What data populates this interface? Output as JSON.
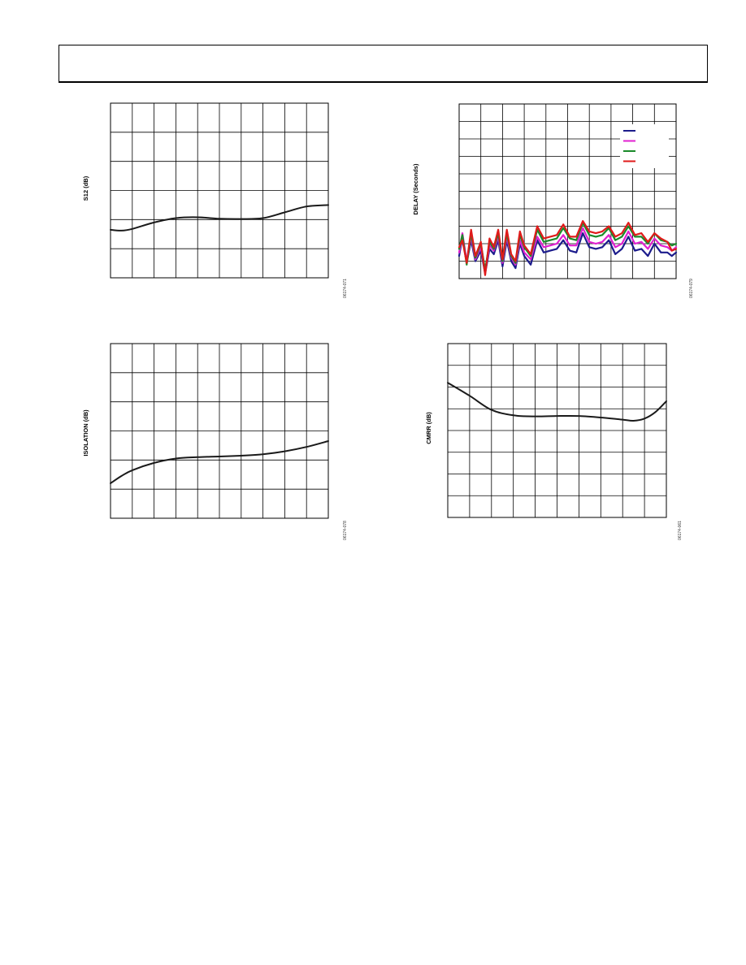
{
  "header": {
    "title": ""
  },
  "chart_data": [
    {
      "id": "s12",
      "type": "line",
      "title": "",
      "xlabel": "",
      "ylabel": "S12 (dB)",
      "figure_id": "06174-071",
      "grid": true,
      "grid_cols": 10,
      "grid_rows": 6,
      "ylim": [
        0,
        6
      ],
      "xlim": [
        0,
        10
      ],
      "series": [
        {
          "color": "#1a1a1a",
          "x": [
            0,
            0.5,
            1,
            2,
            3,
            4,
            5,
            6,
            7,
            8,
            9,
            10
          ],
          "y": [
            1.65,
            1.62,
            1.68,
            1.9,
            2.05,
            2.08,
            2.03,
            2.02,
            2.05,
            2.25,
            2.45,
            2.5
          ]
        }
      ]
    },
    {
      "id": "delay",
      "type": "line",
      "title": "",
      "xlabel": "",
      "ylabel": "DELAY (Seconds)",
      "figure_id": "06174-079",
      "grid": true,
      "grid_cols": 10,
      "grid_rows": 10,
      "ylim": [
        0,
        10
      ],
      "xlim": [
        0,
        10
      ],
      "legend_location": "top-right",
      "series": [
        {
          "color": "#1c1c8c",
          "x": [
            0,
            0.15,
            0.35,
            0.55,
            0.75,
            1.0,
            1.2,
            1.4,
            1.6,
            1.8,
            2.0,
            2.2,
            2.4,
            2.6,
            2.8,
            3.0,
            3.3,
            3.6,
            3.9,
            4.2,
            4.5,
            4.8,
            5.1,
            5.4,
            5.7,
            6.0,
            6.3,
            6.6,
            6.9,
            7.2,
            7.5,
            7.8,
            8.1,
            8.4,
            8.7,
            9.0,
            9.3,
            9.6,
            9.8,
            10.0
          ],
          "y": [
            1.3,
            2.4,
            0.9,
            2.2,
            1.0,
            1.6,
            0.3,
            1.7,
            1.4,
            2.2,
            0.7,
            2.2,
            1.0,
            0.6,
            2.0,
            1.3,
            0.8,
            2.2,
            1.5,
            1.6,
            1.7,
            2.2,
            1.6,
            1.5,
            2.6,
            1.8,
            1.7,
            1.8,
            2.2,
            1.4,
            1.7,
            2.4,
            1.6,
            1.7,
            1.3,
            2.0,
            1.5,
            1.5,
            1.3,
            1.5
          ]
        },
        {
          "color": "#e020d0",
          "x": [
            0,
            0.15,
            0.35,
            0.55,
            0.75,
            1.0,
            1.2,
            1.4,
            1.6,
            1.8,
            2.0,
            2.2,
            2.4,
            2.6,
            2.8,
            3.0,
            3.3,
            3.6,
            3.9,
            4.2,
            4.5,
            4.8,
            5.1,
            5.4,
            5.7,
            6.0,
            6.3,
            6.6,
            6.9,
            7.2,
            7.5,
            7.8,
            8.1,
            8.4,
            8.7,
            9.0,
            9.3,
            9.6,
            9.8,
            10.0
          ],
          "y": [
            1.5,
            2.6,
            1.0,
            2.4,
            1.1,
            1.8,
            0.4,
            1.9,
            1.6,
            2.4,
            0.9,
            2.4,
            1.2,
            0.8,
            2.2,
            1.5,
            1.1,
            2.4,
            1.8,
            1.9,
            2.0,
            2.5,
            1.9,
            1.9,
            2.9,
            2.1,
            2.0,
            2.1,
            2.5,
            1.8,
            2.0,
            2.7,
            2.0,
            2.1,
            1.7,
            2.3,
            1.9,
            1.8,
            1.6,
            1.8
          ]
        },
        {
          "color": "#1a8a2a",
          "x": [
            0,
            0.15,
            0.35,
            0.55,
            0.75,
            1.0,
            1.2,
            1.4,
            1.6,
            1.8,
            2.0,
            2.2,
            2.4,
            2.6,
            2.8,
            3.0,
            3.3,
            3.6,
            3.9,
            4.2,
            4.5,
            4.8,
            5.1,
            5.4,
            5.7,
            6.0,
            6.3,
            6.6,
            6.9,
            7.2,
            7.5,
            7.8,
            8.1,
            8.4,
            8.7,
            9.0,
            9.3,
            9.6,
            9.8,
            10.0
          ],
          "y": [
            1.7,
            2.5,
            0.8,
            2.6,
            1.2,
            2.0,
            0.5,
            2.1,
            1.7,
            2.6,
            1.0,
            2.6,
            1.3,
            0.9,
            2.5,
            1.8,
            1.3,
            2.8,
            2.1,
            2.2,
            2.3,
            2.9,
            2.3,
            2.2,
            3.2,
            2.5,
            2.4,
            2.5,
            2.9,
            2.2,
            2.4,
            3.0,
            2.4,
            2.4,
            2.0,
            2.6,
            2.2,
            2.1,
            1.9,
            2.0
          ]
        },
        {
          "color": "#e01a1a",
          "x": [
            0,
            0.15,
            0.35,
            0.55,
            0.75,
            1.0,
            1.2,
            1.4,
            1.6,
            1.8,
            2.0,
            2.2,
            2.4,
            2.6,
            2.8,
            3.0,
            3.3,
            3.6,
            3.9,
            4.2,
            4.5,
            4.8,
            5.1,
            5.4,
            5.7,
            6.0,
            6.3,
            6.6,
            6.9,
            7.2,
            7.5,
            7.8,
            8.1,
            8.4,
            8.7,
            9.0,
            9.3,
            9.6,
            9.8,
            10.0
          ],
          "y": [
            1.8,
            2.2,
            0.9,
            2.8,
            1.3,
            2.1,
            0.2,
            2.3,
            1.8,
            2.8,
            1.1,
            2.8,
            1.4,
            1.0,
            2.7,
            1.9,
            1.4,
            3.0,
            2.3,
            2.4,
            2.5,
            3.1,
            2.4,
            2.4,
            3.3,
            2.7,
            2.6,
            2.7,
            3.0,
            2.4,
            2.6,
            3.2,
            2.5,
            2.6,
            2.1,
            2.6,
            2.3,
            2.1,
            1.6,
            1.7
          ]
        }
      ]
    },
    {
      "id": "isolation",
      "type": "line",
      "title": "",
      "xlabel": "",
      "ylabel": "ISOLATION (dB)",
      "figure_id": "06174-078",
      "grid": true,
      "grid_cols": 10,
      "grid_rows": 6,
      "ylim": [
        0,
        6
      ],
      "xlim": [
        0,
        10
      ],
      "series": [
        {
          "color": "#1a1a1a",
          "x": [
            0,
            0.5,
            1,
            2,
            3,
            4,
            5,
            6,
            7,
            8,
            9,
            10
          ],
          "y": [
            1.2,
            1.45,
            1.65,
            1.9,
            2.05,
            2.1,
            2.12,
            2.15,
            2.2,
            2.3,
            2.45,
            2.65
          ]
        }
      ]
    },
    {
      "id": "cmrr",
      "type": "line",
      "title": "",
      "xlabel": "",
      "ylabel": "CMRR (dB)",
      "figure_id": "06174-061",
      "grid": true,
      "grid_cols": 10,
      "grid_rows": 8,
      "ylim": [
        0,
        8
      ],
      "xlim": [
        0,
        10
      ],
      "series": [
        {
          "color": "#1a1a1a",
          "x": [
            0,
            1,
            2,
            3,
            4,
            5,
            6,
            7,
            8,
            8.5,
            9,
            9.5,
            10
          ],
          "y": [
            6.2,
            5.6,
            4.95,
            4.7,
            4.65,
            4.67,
            4.67,
            4.6,
            4.5,
            4.45,
            4.55,
            4.85,
            5.35
          ]
        }
      ]
    }
  ]
}
